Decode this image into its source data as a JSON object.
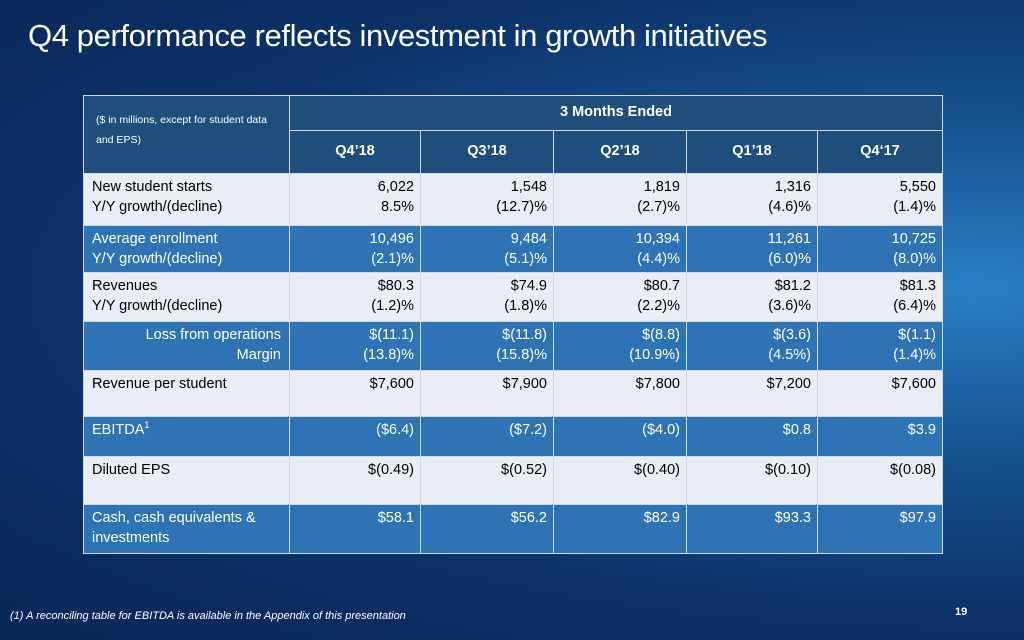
{
  "title": "Q4 performance reflects investment in growth initiatives",
  "table": {
    "unit_note": "($ in millions, except for student data and EPS)",
    "period_header": "3 Months Ended",
    "columns": [
      "Q4’18",
      "Q3’18",
      "Q2’18",
      "Q1’18",
      "Q4‘17"
    ],
    "rows": [
      {
        "style": "light",
        "align": "left",
        "labels": [
          "New student starts",
          "Y/Y growth/(decline)"
        ],
        "values": [
          [
            "6,022",
            "8.5%"
          ],
          [
            "1,548",
            "(12.7)%"
          ],
          [
            "1,819",
            "(2.7)%"
          ],
          [
            "1,316",
            "(4.6)%"
          ],
          [
            "5,550",
            "(1.4)%"
          ]
        ]
      },
      {
        "style": "blue",
        "align": "left",
        "labels": [
          "Average enrollment",
          "Y/Y growth/(decline)"
        ],
        "values": [
          [
            "10,496",
            "(2.1)%"
          ],
          [
            "9,484",
            "(5.1)%"
          ],
          [
            "10,394",
            "(4.4)%"
          ],
          [
            "11,261",
            "(6.0)%"
          ],
          [
            "10,725",
            "(8.0)%"
          ]
        ]
      },
      {
        "style": "light",
        "align": "left",
        "labels": [
          "Revenues",
          "Y/Y growth/(decline)"
        ],
        "values": [
          [
            "$80.3",
            "(1.2)%"
          ],
          [
            "$74.9",
            "(1.8)%"
          ],
          [
            "$80.7",
            "(2.2)%"
          ],
          [
            "$81.2",
            "(3.6)%"
          ],
          [
            "$81.3",
            "(6.4)%"
          ]
        ]
      },
      {
        "style": "blue",
        "align": "right",
        "labels": [
          "Loss from operations",
          "Margin"
        ],
        "values": [
          [
            "$(11.1)",
            "(13.8)%"
          ],
          [
            "$(11.8)",
            "(15.8)%"
          ],
          [
            "$(8.8)",
            "(10.9%)"
          ],
          [
            "$(3.6)",
            "(4.5%)"
          ],
          [
            "$(1.1)",
            "(1.4)%"
          ]
        ]
      },
      {
        "style": "light",
        "align": "left",
        "labels": [
          "Revenue per student"
        ],
        "values": [
          [
            "$7,600"
          ],
          [
            "$7,900"
          ],
          [
            "$7,800"
          ],
          [
            "$7,200"
          ],
          [
            "$7,600"
          ]
        ]
      },
      {
        "style": "blue",
        "align": "left",
        "labels": [
          "EBITDA"
        ],
        "footnote_mark": "1",
        "values": [
          [
            "($6.4)"
          ],
          [
            "($7.2)"
          ],
          [
            "($4.0)"
          ],
          [
            "$0.8"
          ],
          [
            "$3.9"
          ]
        ]
      },
      {
        "style": "light",
        "align": "left",
        "labels": [
          "Diluted EPS"
        ],
        "values": [
          [
            "$(0.49)"
          ],
          [
            "$(0.52)"
          ],
          [
            "$(0.40)"
          ],
          [
            "$(0.10)"
          ],
          [
            "$(0.08)"
          ]
        ]
      },
      {
        "style": "blue",
        "align": "left",
        "labels": [
          "Cash, cash equivalents &",
          "investments"
        ],
        "values": [
          [
            "$58.1"
          ],
          [
            "$56.2"
          ],
          [
            "$82.9"
          ],
          [
            "$93.3"
          ],
          [
            "$97.9"
          ]
        ]
      }
    ]
  },
  "footnote": "(1)  A reconciling table for EBITDA is available in the Appendix of this presentation",
  "page_number": "19",
  "colors": {
    "header": "#1f4e7d",
    "row_blue": "#2e74b5",
    "row_light": "#e9edf4",
    "background": "#0d3168"
  }
}
